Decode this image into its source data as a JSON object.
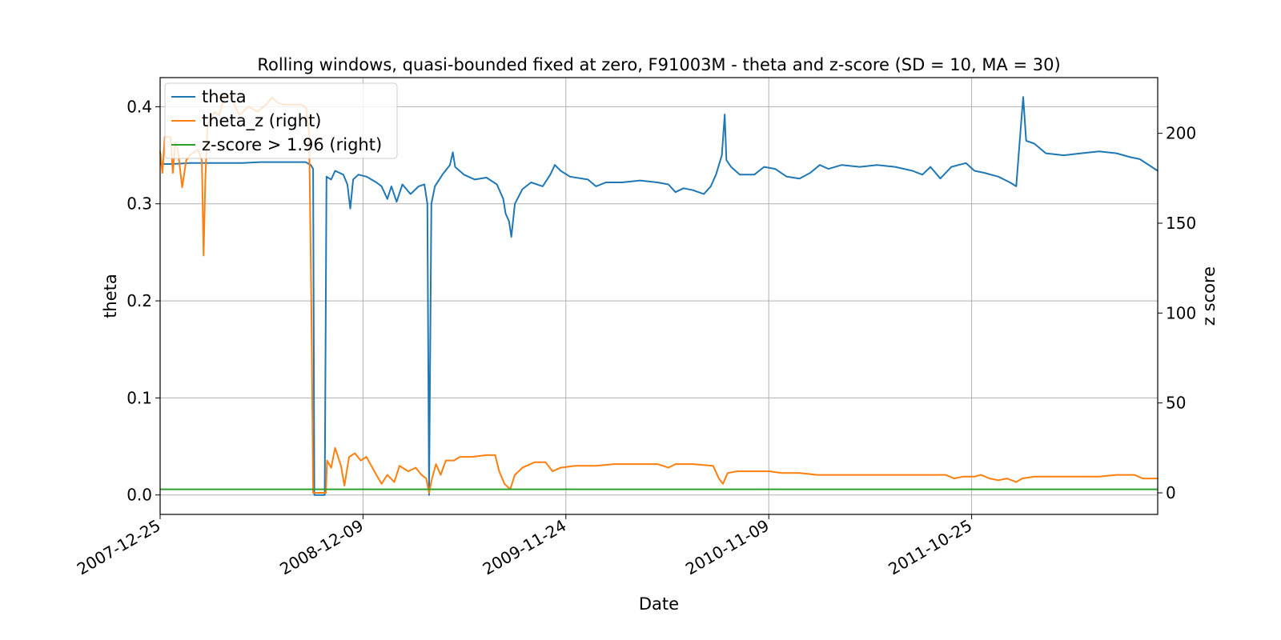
{
  "chart_data": {
    "type": "line",
    "title": "Rolling windows, quasi-bounded fixed at zero, F91003M - theta and z-score (SD = 10, MA = 30)",
    "xlabel": "Date",
    "ylabel_left": "theta",
    "ylabel_right": "z score",
    "xlim": [
      "2007-12-25",
      "2012-09-10"
    ],
    "ylim_left": [
      -0.02,
      0.43
    ],
    "ylim_right": [
      -12,
      231
    ],
    "x_ticks": [
      "2007-12-25",
      "2008-12-09",
      "2009-11-24",
      "2010-11-09",
      "2011-10-25"
    ],
    "y_ticks_left": [
      "0.0",
      "0.1",
      "0.2",
      "0.3",
      "0.4"
    ],
    "y_ticks_right": [
      "0",
      "50",
      "100",
      "150",
      "200"
    ],
    "grid": true,
    "legend_position": "upper-left",
    "series": [
      {
        "name": "theta",
        "axis": "left",
        "color": "#1f77b4",
        "points": [
          [
            "2007-12-25",
            0.341
          ],
          [
            "2008-01-15",
            0.341
          ],
          [
            "2008-02-15",
            0.342
          ],
          [
            "2008-03-15",
            0.342
          ],
          [
            "2008-04-15",
            0.342
          ],
          [
            "2008-05-15",
            0.342
          ],
          [
            "2008-06-15",
            0.343
          ],
          [
            "2008-07-15",
            0.343
          ],
          [
            "2008-08-15",
            0.343
          ],
          [
            "2008-09-01",
            0.343
          ],
          [
            "2008-09-10",
            0.34
          ],
          [
            "2008-09-14",
            0.336
          ],
          [
            "2008-09-16",
            0.0
          ],
          [
            "2008-10-04",
            0.0
          ],
          [
            "2008-10-07",
            0.328
          ],
          [
            "2008-10-15",
            0.325
          ],
          [
            "2008-10-22",
            0.334
          ],
          [
            "2008-11-05",
            0.33
          ],
          [
            "2008-11-12",
            0.32
          ],
          [
            "2008-11-17",
            0.295
          ],
          [
            "2008-11-22",
            0.325
          ],
          [
            "2008-12-01",
            0.33
          ],
          [
            "2008-12-15",
            0.328
          ],
          [
            "2009-01-01",
            0.322
          ],
          [
            "2009-01-10",
            0.318
          ],
          [
            "2009-01-20",
            0.305
          ],
          [
            "2009-01-27",
            0.318
          ],
          [
            "2009-02-05",
            0.302
          ],
          [
            "2009-02-15",
            0.32
          ],
          [
            "2009-03-01",
            0.31
          ],
          [
            "2009-03-15",
            0.318
          ],
          [
            "2009-03-25",
            0.32
          ],
          [
            "2009-03-30",
            0.3
          ],
          [
            "2009-04-02",
            0.0
          ],
          [
            "2009-04-06",
            0.3
          ],
          [
            "2009-04-12",
            0.318
          ],
          [
            "2009-04-25",
            0.33
          ],
          [
            "2009-05-08",
            0.34
          ],
          [
            "2009-05-13",
            0.353
          ],
          [
            "2009-05-17",
            0.338
          ],
          [
            "2009-06-01",
            0.33
          ],
          [
            "2009-06-20",
            0.325
          ],
          [
            "2009-07-10",
            0.327
          ],
          [
            "2009-07-28",
            0.32
          ],
          [
            "2009-08-08",
            0.305
          ],
          [
            "2009-08-12",
            0.29
          ],
          [
            "2009-08-18",
            0.282
          ],
          [
            "2009-08-22",
            0.266
          ],
          [
            "2009-08-28",
            0.3
          ],
          [
            "2009-09-10",
            0.315
          ],
          [
            "2009-09-25",
            0.322
          ],
          [
            "2009-10-15",
            0.318
          ],
          [
            "2009-10-28",
            0.33
          ],
          [
            "2009-11-05",
            0.34
          ],
          [
            "2009-11-15",
            0.334
          ],
          [
            "2009-12-01",
            0.328
          ],
          [
            "2010-01-01",
            0.325
          ],
          [
            "2010-01-15",
            0.318
          ],
          [
            "2010-02-01",
            0.322
          ],
          [
            "2010-03-01",
            0.322
          ],
          [
            "2010-04-01",
            0.324
          ],
          [
            "2010-05-01",
            0.322
          ],
          [
            "2010-05-20",
            0.32
          ],
          [
            "2010-06-01",
            0.312
          ],
          [
            "2010-06-15",
            0.316
          ],
          [
            "2010-07-01",
            0.314
          ],
          [
            "2010-07-20",
            0.31
          ],
          [
            "2010-08-01",
            0.318
          ],
          [
            "2010-08-10",
            0.33
          ],
          [
            "2010-08-20",
            0.35
          ],
          [
            "2010-08-25",
            0.392
          ],
          [
            "2010-08-28",
            0.345
          ],
          [
            "2010-09-05",
            0.338
          ],
          [
            "2010-09-20",
            0.33
          ],
          [
            "2010-10-15",
            0.33
          ],
          [
            "2010-11-01",
            0.338
          ],
          [
            "2010-11-20",
            0.336
          ],
          [
            "2010-12-10",
            0.328
          ],
          [
            "2011-01-01",
            0.326
          ],
          [
            "2011-01-20",
            0.332
          ],
          [
            "2011-02-05",
            0.34
          ],
          [
            "2011-02-20",
            0.336
          ],
          [
            "2011-03-15",
            0.34
          ],
          [
            "2011-04-15",
            0.338
          ],
          [
            "2011-05-15",
            0.34
          ],
          [
            "2011-06-15",
            0.338
          ],
          [
            "2011-07-15",
            0.334
          ],
          [
            "2011-08-01",
            0.33
          ],
          [
            "2011-08-15",
            0.338
          ],
          [
            "2011-09-01",
            0.326
          ],
          [
            "2011-09-20",
            0.338
          ],
          [
            "2011-10-15",
            0.342
          ],
          [
            "2011-10-30",
            0.334
          ],
          [
            "2011-11-15",
            0.332
          ],
          [
            "2011-12-10",
            0.328
          ],
          [
            "2011-12-30",
            0.322
          ],
          [
            "2012-01-10",
            0.318
          ],
          [
            "2012-01-18",
            0.38
          ],
          [
            "2012-01-22",
            0.41
          ],
          [
            "2012-01-27",
            0.365
          ],
          [
            "2012-02-10",
            0.362
          ],
          [
            "2012-03-01",
            0.352
          ],
          [
            "2012-04-01",
            0.35
          ],
          [
            "2012-05-01",
            0.352
          ],
          [
            "2012-06-01",
            0.354
          ],
          [
            "2012-07-01",
            0.352
          ],
          [
            "2012-07-25",
            0.348
          ],
          [
            "2012-08-10",
            0.346
          ],
          [
            "2012-09-10",
            0.334
          ]
        ]
      },
      {
        "name": "theta_z (right)",
        "axis": "right",
        "color": "#ff7f0e",
        "points": [
          [
            "2007-12-25",
            190
          ],
          [
            "2007-12-29",
            178
          ],
          [
            "2008-01-02",
            198
          ],
          [
            "2008-01-12",
            198
          ],
          [
            "2008-01-16",
            178
          ],
          [
            "2008-01-20",
            195
          ],
          [
            "2008-01-25",
            190
          ],
          [
            "2008-02-01",
            170
          ],
          [
            "2008-02-08",
            185
          ],
          [
            "2008-02-15",
            188
          ],
          [
            "2008-02-28",
            191
          ],
          [
            "2008-03-06",
            185
          ],
          [
            "2008-03-09",
            132
          ],
          [
            "2008-03-12",
            175
          ],
          [
            "2008-03-16",
            205
          ],
          [
            "2008-03-28",
            212
          ],
          [
            "2008-04-05",
            210
          ],
          [
            "2008-04-15",
            222
          ],
          [
            "2008-04-25",
            220
          ],
          [
            "2008-05-10",
            210
          ],
          [
            "2008-05-25",
            215
          ],
          [
            "2008-06-10",
            212
          ],
          [
            "2008-06-25",
            216
          ],
          [
            "2008-07-05",
            220
          ],
          [
            "2008-07-15",
            217
          ],
          [
            "2008-07-25",
            216
          ],
          [
            "2008-08-10",
            216
          ],
          [
            "2008-08-25",
            216
          ],
          [
            "2008-09-02",
            214
          ],
          [
            "2008-09-07",
            200
          ],
          [
            "2008-09-11",
            100
          ],
          [
            "2008-09-14",
            0
          ],
          [
            "2008-10-06",
            0
          ],
          [
            "2008-10-08",
            18
          ],
          [
            "2008-10-15",
            14
          ],
          [
            "2008-10-22",
            25
          ],
          [
            "2008-11-01",
            15
          ],
          [
            "2008-11-07",
            4
          ],
          [
            "2008-11-15",
            20
          ],
          [
            "2008-11-25",
            22
          ],
          [
            "2008-12-05",
            18
          ],
          [
            "2008-12-15",
            20
          ],
          [
            "2009-01-01",
            10
          ],
          [
            "2009-01-10",
            5
          ],
          [
            "2009-01-20",
            10
          ],
          [
            "2009-02-01",
            6
          ],
          [
            "2009-02-10",
            15
          ],
          [
            "2009-02-25",
            12
          ],
          [
            "2009-03-10",
            14
          ],
          [
            "2009-03-20",
            10
          ],
          [
            "2009-03-28",
            8
          ],
          [
            "2009-04-02",
            0
          ],
          [
            "2009-04-07",
            8
          ],
          [
            "2009-04-14",
            16
          ],
          [
            "2009-04-22",
            10
          ],
          [
            "2009-05-01",
            18
          ],
          [
            "2009-05-15",
            18
          ],
          [
            "2009-05-25",
            20
          ],
          [
            "2009-06-15",
            20
          ],
          [
            "2009-07-10",
            21
          ],
          [
            "2009-07-25",
            21
          ],
          [
            "2009-08-01",
            12
          ],
          [
            "2009-08-10",
            5
          ],
          [
            "2009-08-20",
            2
          ],
          [
            "2009-08-28",
            10
          ],
          [
            "2009-09-10",
            14
          ],
          [
            "2009-10-01",
            17
          ],
          [
            "2009-10-20",
            17
          ],
          [
            "2009-11-01",
            12
          ],
          [
            "2009-11-15",
            14
          ],
          [
            "2009-12-10",
            15
          ],
          [
            "2010-01-15",
            15
          ],
          [
            "2010-02-15",
            16
          ],
          [
            "2010-04-01",
            16
          ],
          [
            "2010-05-01",
            16
          ],
          [
            "2010-05-20",
            14
          ],
          [
            "2010-06-01",
            16
          ],
          [
            "2010-07-01",
            16
          ],
          [
            "2010-08-05",
            15
          ],
          [
            "2010-08-15",
            8
          ],
          [
            "2010-08-22",
            5
          ],
          [
            "2010-08-30",
            11
          ],
          [
            "2010-09-15",
            12
          ],
          [
            "2010-10-15",
            12
          ],
          [
            "2010-11-10",
            12
          ],
          [
            "2010-12-01",
            11
          ],
          [
            "2011-01-01",
            11
          ],
          [
            "2011-02-01",
            10
          ],
          [
            "2011-04-01",
            10
          ],
          [
            "2011-06-01",
            10
          ],
          [
            "2011-08-01",
            10
          ],
          [
            "2011-09-10",
            10
          ],
          [
            "2011-09-25",
            8
          ],
          [
            "2011-10-10",
            9
          ],
          [
            "2011-10-30",
            9
          ],
          [
            "2011-11-10",
            10
          ],
          [
            "2011-11-25",
            8
          ],
          [
            "2011-12-10",
            7
          ],
          [
            "2011-12-25",
            8
          ],
          [
            "2012-01-10",
            6
          ],
          [
            "2012-01-20",
            8
          ],
          [
            "2012-02-10",
            9
          ],
          [
            "2012-04-01",
            9
          ],
          [
            "2012-06-01",
            9
          ],
          [
            "2012-07-01",
            10
          ],
          [
            "2012-08-01",
            10
          ],
          [
            "2012-08-15",
            8
          ],
          [
            "2012-09-10",
            8
          ]
        ]
      },
      {
        "name": "z-score > 1.96 (right)",
        "axis": "right",
        "color": "#2ca02c",
        "points": [
          [
            "2007-12-25",
            1.96
          ],
          [
            "2012-09-10",
            1.96
          ]
        ]
      }
    ]
  }
}
